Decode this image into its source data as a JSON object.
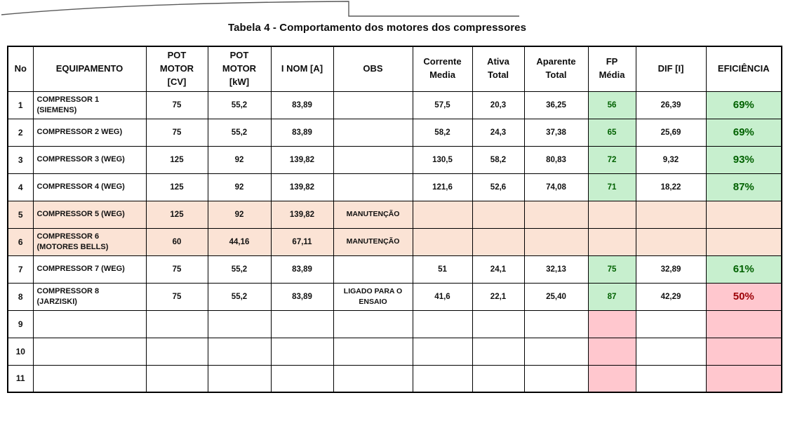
{
  "title": "Tabela 4 - Comportamento dos motores dos compressores",
  "colors": {
    "good_fill": "#c7efce",
    "good_text": "#006100",
    "bad_fill": "#ffc7ce",
    "bad_text": "#9c0006",
    "maintenance_fill": "#fbe3d5",
    "grid": "#000000"
  },
  "table": {
    "column_keys": [
      "no",
      "equipamento",
      "pot_cv",
      "pot_kw",
      "i_nom",
      "obs",
      "corrente_media",
      "ativa_total",
      "aparente_total",
      "fp_media",
      "dif_i",
      "eficiencia"
    ],
    "columns": [
      "No",
      "EQUIPAMENTO",
      "POT\nMOTOR\n[CV]",
      "POT\nMOTOR\n[kW]",
      "I NOM [A]",
      "OBS",
      "Corrente\nMedia",
      "Ativa\nTotal",
      "Aparente\nTotal",
      "FP\nMédia",
      "DIF [I]",
      "EFICIÊNCIA"
    ],
    "rows": [
      {
        "no": "1",
        "equipamento": "COMPRESSOR 1\n(SIEMENS)",
        "pot_cv": "75",
        "pot_kw": "55,2",
        "i_nom": "83,89",
        "obs": "",
        "corrente_media": "57,5",
        "ativa_total": "20,3",
        "aparente_total": "36,25",
        "fp_media": "56",
        "dif_i": "26,39",
        "eficiencia": "69%",
        "maintenance": false,
        "fp_state": "ok",
        "ef_state": "ok"
      },
      {
        "no": "2",
        "equipamento": "COMPRESSOR 2 WEG)",
        "pot_cv": "75",
        "pot_kw": "55,2",
        "i_nom": "83,89",
        "obs": "",
        "corrente_media": "58,2",
        "ativa_total": "24,3",
        "aparente_total": "37,38",
        "fp_media": "65",
        "dif_i": "25,69",
        "eficiencia": "69%",
        "maintenance": false,
        "fp_state": "ok",
        "ef_state": "ok"
      },
      {
        "no": "3",
        "equipamento": "COMPRESSOR 3 (WEG)",
        "pot_cv": "125",
        "pot_kw": "92",
        "i_nom": "139,82",
        "obs": "",
        "corrente_media": "130,5",
        "ativa_total": "58,2",
        "aparente_total": "80,83",
        "fp_media": "72",
        "dif_i": "9,32",
        "eficiencia": "93%",
        "maintenance": false,
        "fp_state": "ok",
        "ef_state": "ok"
      },
      {
        "no": "4",
        "equipamento": "COMPRESSOR 4 (WEG)",
        "pot_cv": "125",
        "pot_kw": "92",
        "i_nom": "139,82",
        "obs": "",
        "corrente_media": "121,6",
        "ativa_total": "52,6",
        "aparente_total": "74,08",
        "fp_media": "71",
        "dif_i": "18,22",
        "eficiencia": "87%",
        "maintenance": false,
        "fp_state": "ok",
        "ef_state": "ok"
      },
      {
        "no": "5",
        "equipamento": "COMPRESSOR 5 (WEG)",
        "pot_cv": "125",
        "pot_kw": "92",
        "i_nom": "139,82",
        "obs": "MANUTENÇÃO",
        "corrente_media": "",
        "ativa_total": "",
        "aparente_total": "",
        "fp_media": "",
        "dif_i": "",
        "eficiencia": "",
        "maintenance": true,
        "fp_state": "na",
        "ef_state": "na"
      },
      {
        "no": "6",
        "equipamento": "COMPRESSOR 6\n(MOTORES BELLS)",
        "pot_cv": "60",
        "pot_kw": "44,16",
        "i_nom": "67,11",
        "obs": "MANUTENÇÃO",
        "corrente_media": "",
        "ativa_total": "",
        "aparente_total": "",
        "fp_media": "",
        "dif_i": "",
        "eficiencia": "",
        "maintenance": true,
        "fp_state": "na",
        "ef_state": "na"
      },
      {
        "no": "7",
        "equipamento": "COMPRESSOR 7 (WEG)",
        "pot_cv": "75",
        "pot_kw": "55,2",
        "i_nom": "83,89",
        "obs": "",
        "corrente_media": "51",
        "ativa_total": "24,1",
        "aparente_total": "32,13",
        "fp_media": "75",
        "dif_i": "32,89",
        "eficiencia": "61%",
        "maintenance": false,
        "fp_state": "ok",
        "ef_state": "ok"
      },
      {
        "no": "8",
        "equipamento": "COMPRESSOR 8\n(JARZISKI)",
        "pot_cv": "75",
        "pot_kw": "55,2",
        "i_nom": "83,89",
        "obs": "LIGADO PARA O\nENSAIO",
        "corrente_media": "41,6",
        "ativa_total": "22,1",
        "aparente_total": "25,40",
        "fp_media": "87",
        "dif_i": "42,29",
        "eficiencia": "50%",
        "maintenance": false,
        "fp_state": "ok",
        "ef_state": "low"
      },
      {
        "no": "9",
        "equipamento": "",
        "pot_cv": "",
        "pot_kw": "",
        "i_nom": "",
        "obs": "",
        "corrente_media": "",
        "ativa_total": "",
        "aparente_total": "",
        "fp_media": "",
        "dif_i": "",
        "eficiencia": "",
        "maintenance": false,
        "fp_state": "na",
        "ef_state": "na"
      },
      {
        "no": "10",
        "equipamento": "",
        "pot_cv": "",
        "pot_kw": "",
        "i_nom": "",
        "obs": "",
        "corrente_media": "",
        "ativa_total": "",
        "aparente_total": "",
        "fp_media": "",
        "dif_i": "",
        "eficiencia": "",
        "maintenance": false,
        "fp_state": "na",
        "ef_state": "na"
      },
      {
        "no": "11",
        "equipamento": "",
        "pot_cv": "",
        "pot_kw": "",
        "i_nom": "",
        "obs": "",
        "corrente_media": "",
        "ativa_total": "",
        "aparente_total": "",
        "fp_media": "",
        "dif_i": "",
        "eficiencia": "",
        "maintenance": false,
        "fp_state": "na",
        "ef_state": "na"
      }
    ]
  }
}
